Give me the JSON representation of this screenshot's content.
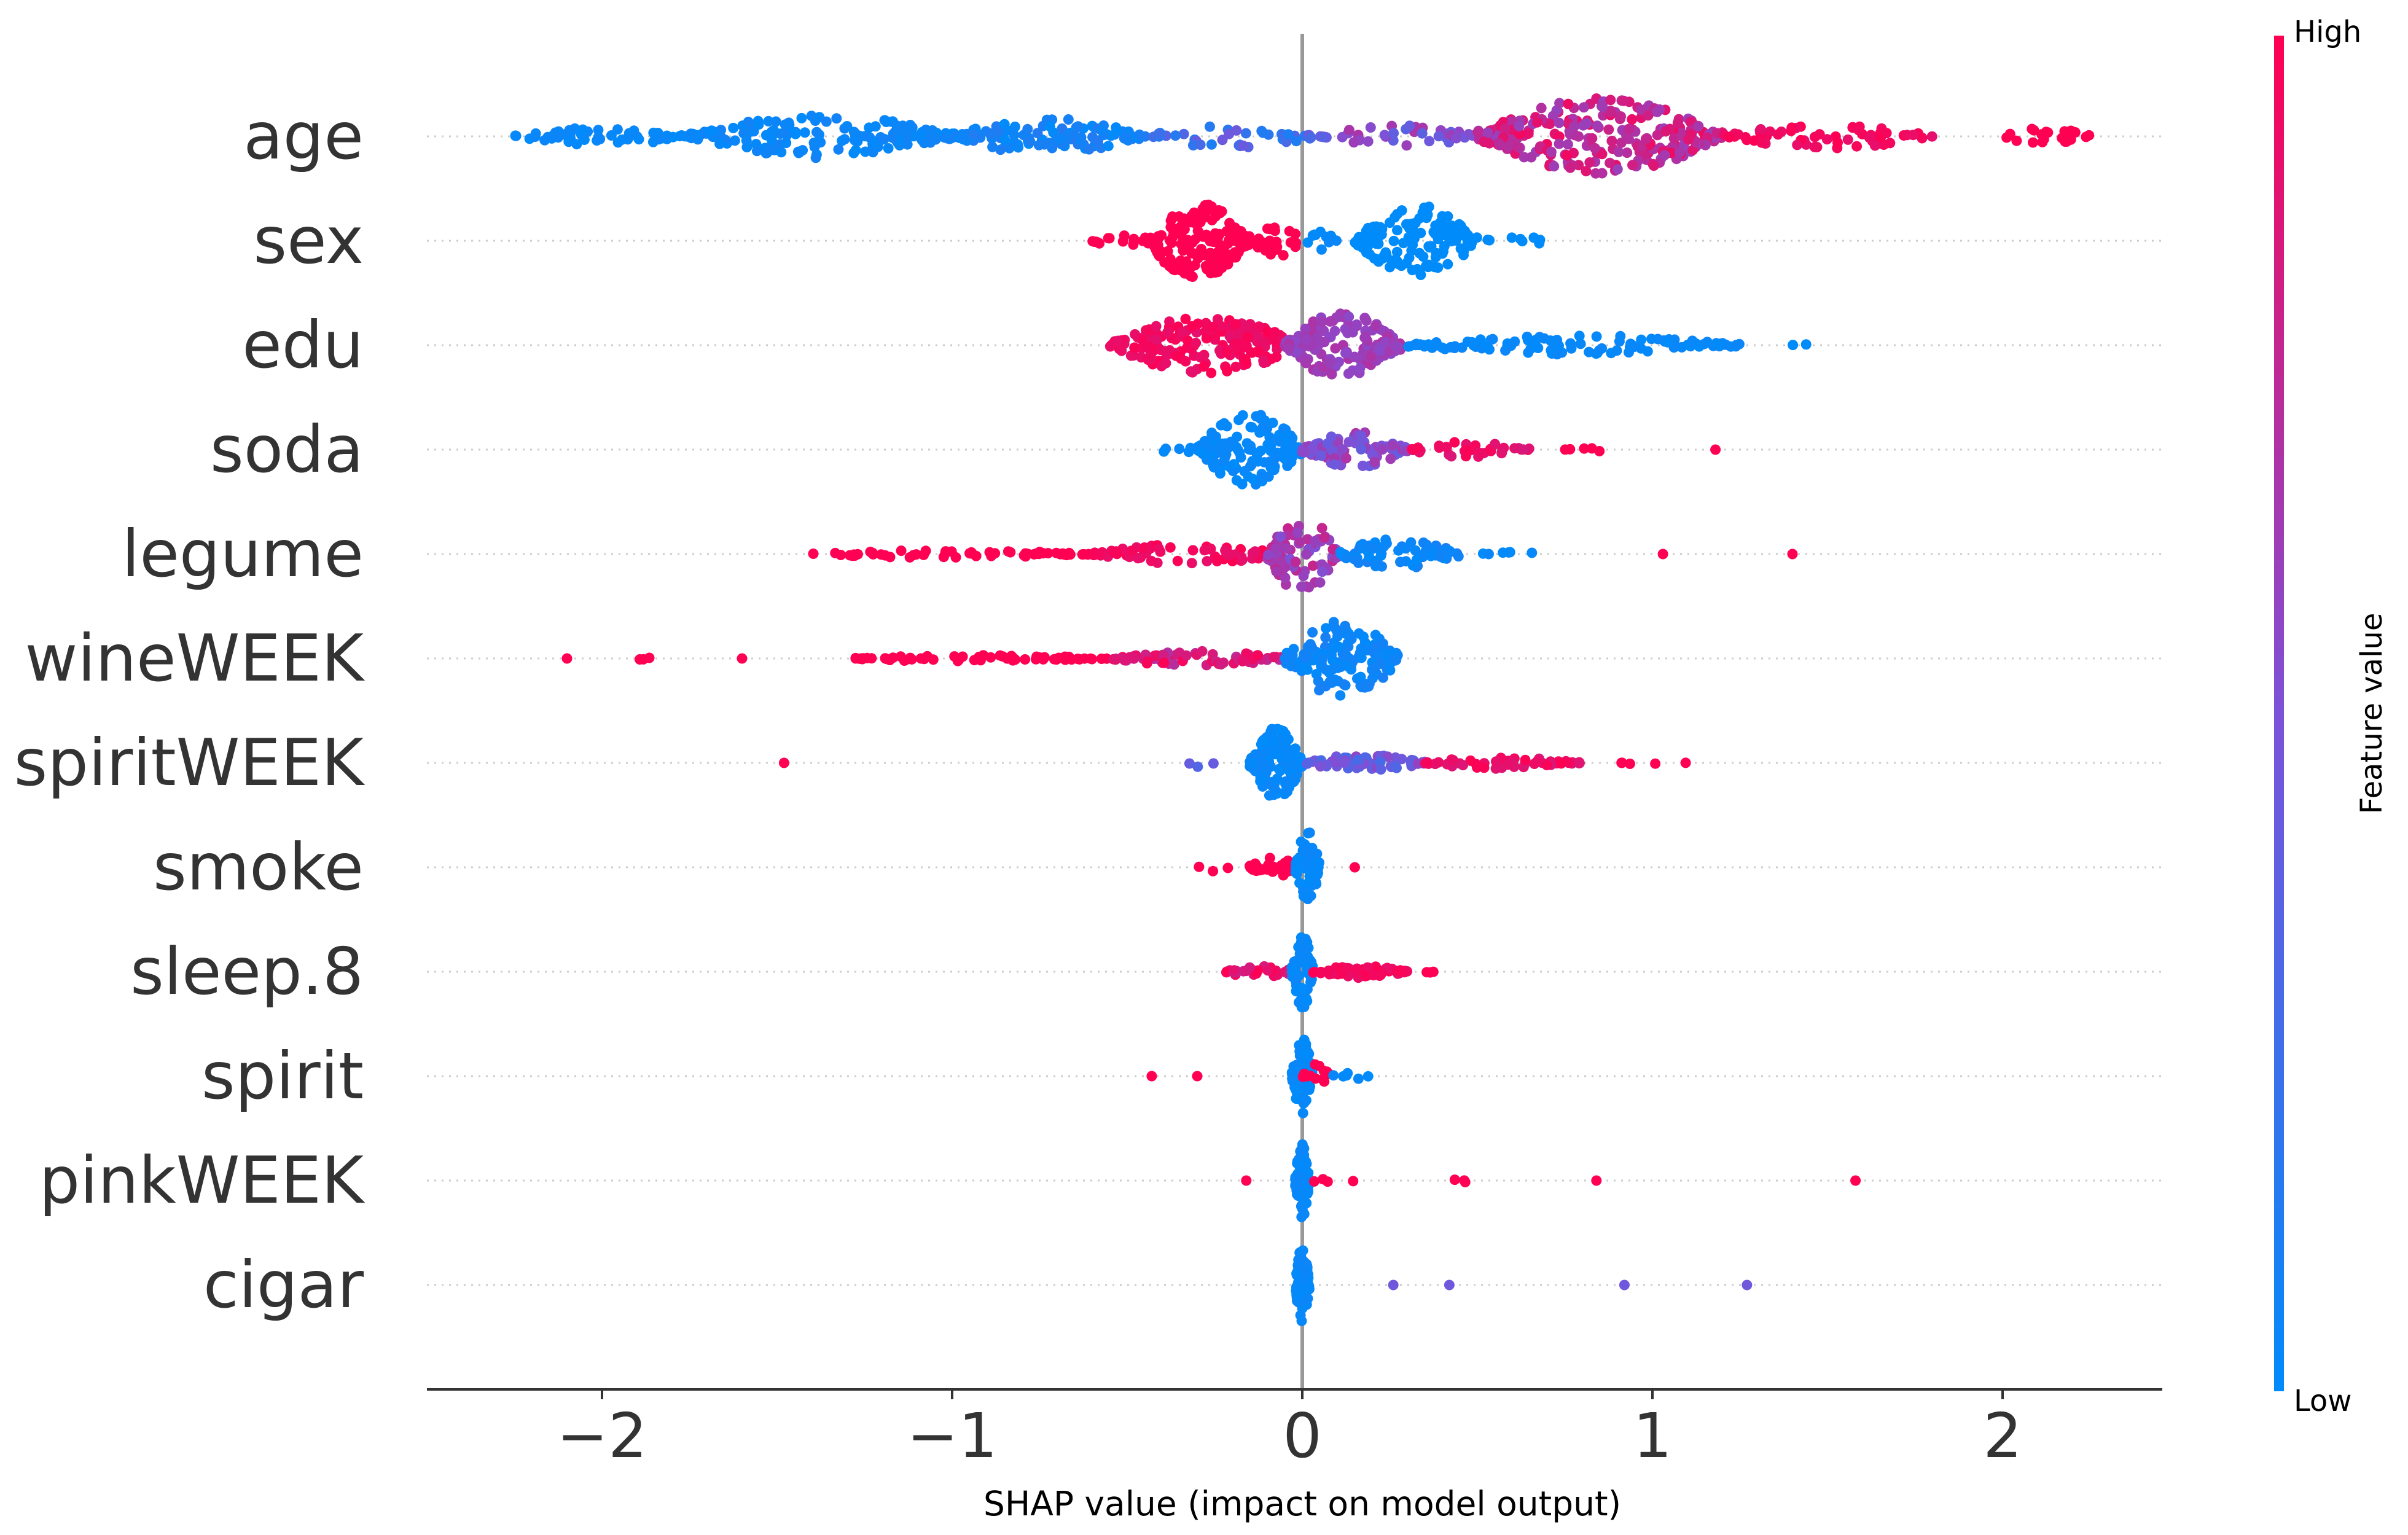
{
  "chart_data": {
    "type": "scatter",
    "subtype": "shap-beeswarm",
    "title": "",
    "xlabel": "SHAP value (impact on model output)",
    "ylabel": "",
    "xlim": [
      -2.5,
      2.5
    ],
    "xticks": [
      -2,
      -1,
      0,
      1,
      2
    ],
    "xtick_labels": [
      "−2",
      "−1",
      "0",
      "1",
      "2"
    ],
    "features": [
      "age",
      "sex",
      "edu",
      "soda",
      "legume",
      "wineWEEK",
      "spiritWEEK",
      "smoke",
      "sleep.8",
      "spirit",
      "pinkWEEK",
      "cigar"
    ],
    "colorbar": {
      "title": "Feature value",
      "high_label": "High",
      "low_label": "Low",
      "low_color": "#008bfb",
      "high_color": "#ff0052"
    },
    "zero_line_color": "#999999",
    "series": [
      {
        "name": "age",
        "clusters": [
          {
            "from": -2.25,
            "to": -1.75,
            "n": 60,
            "spread": 0.22,
            "fv": [
              0.0,
              0.05
            ]
          },
          {
            "from": -1.75,
            "to": -1.0,
            "n": 170,
            "spread": 0.55,
            "fv": [
              0.0,
              0.08
            ]
          },
          {
            "from": -1.0,
            "to": -0.45,
            "n": 110,
            "spread": 0.45,
            "fv": [
              0.0,
              0.15
            ]
          },
          {
            "from": -0.45,
            "to": 0.05,
            "n": 45,
            "spread": 0.3,
            "fv": [
              0.1,
              0.45
            ]
          },
          {
            "from": 0.05,
            "to": 0.5,
            "n": 40,
            "spread": 0.28,
            "fv": [
              0.35,
              0.7
            ]
          },
          {
            "from": 0.5,
            "to": 1.2,
            "n": 260,
            "spread": 0.95,
            "fv": [
              0.6,
              0.95
            ]
          },
          {
            "from": 1.2,
            "to": 1.8,
            "n": 60,
            "spread": 0.3,
            "fv": [
              0.9,
              1.0
            ]
          },
          {
            "from": 2.0,
            "to": 2.25,
            "n": 25,
            "spread": 0.22,
            "fv": [
              1.0,
              1.0
            ]
          }
        ]
      },
      {
        "name": "sex",
        "clusters": [
          {
            "from": -0.6,
            "to": -0.45,
            "n": 12,
            "spread": 0.15,
            "fv": [
              1.0,
              1.0
            ]
          },
          {
            "from": -0.45,
            "to": -0.15,
            "n": 170,
            "spread": 0.95,
            "fv": [
              1.0,
              1.0
            ]
          },
          {
            "from": -0.15,
            "to": 0.0,
            "n": 25,
            "spread": 0.4,
            "fv": [
              1.0,
              1.0
            ]
          },
          {
            "from": 0.0,
            "to": 0.1,
            "n": 12,
            "spread": 0.25,
            "fv": [
              0.0,
              0.05
            ]
          },
          {
            "from": 0.15,
            "to": 0.5,
            "n": 150,
            "spread": 0.9,
            "fv": [
              0.0,
              0.0
            ]
          },
          {
            "from": 0.5,
            "to": 0.72,
            "n": 8,
            "spread": 0.1,
            "fv": [
              0.0,
              0.0
            ]
          }
        ]
      },
      {
        "name": "edu",
        "clusters": [
          {
            "from": -0.55,
            "to": 0.0,
            "n": 200,
            "spread": 0.7,
            "fv": [
              0.9,
              1.0
            ]
          },
          {
            "from": -0.05,
            "to": 0.28,
            "n": 150,
            "spread": 0.85,
            "fv": [
              0.55,
              0.7
            ]
          },
          {
            "from": 0.3,
            "to": 1.25,
            "n": 110,
            "spread": 0.25,
            "fv": [
              0.0,
              0.05
            ]
          },
          {
            "from": 1.4,
            "to": 1.46,
            "n": 2,
            "spread": 0.05,
            "fv": [
              0.0,
              0.0
            ]
          }
        ]
      },
      {
        "name": "soda",
        "clusters": [
          {
            "from": -0.42,
            "to": -0.3,
            "n": 5,
            "spread": 0.1,
            "fv": [
              0.0,
              0.05
            ]
          },
          {
            "from": -0.3,
            "to": 0.0,
            "n": 150,
            "spread": 0.95,
            "fv": [
              0.0,
              0.05
            ]
          },
          {
            "from": 0.0,
            "to": 0.3,
            "n": 90,
            "spread": 0.45,
            "fv": [
              0.4,
              0.7
            ]
          },
          {
            "from": 0.3,
            "to": 0.65,
            "n": 35,
            "spread": 0.2,
            "fv": [
              0.85,
              1.0
            ]
          },
          {
            "from": 0.75,
            "to": 0.93,
            "n": 5,
            "spread": 0.05,
            "fv": [
              1.0,
              1.0
            ]
          },
          {
            "from": 1.17,
            "to": 1.19,
            "n": 1,
            "spread": 0.0,
            "fv": [
              1.0,
              1.0
            ]
          }
        ]
      },
      {
        "name": "legume",
        "clusters": [
          {
            "from": -1.4,
            "to": -0.6,
            "n": 60,
            "spread": 0.1,
            "fv": [
              1.0,
              1.0
            ]
          },
          {
            "from": -0.6,
            "to": -0.05,
            "n": 70,
            "spread": 0.25,
            "fv": [
              0.9,
              1.0
            ]
          },
          {
            "from": -0.1,
            "to": 0.1,
            "n": 90,
            "spread": 1.0,
            "fv": [
              0.5,
              0.8
            ]
          },
          {
            "from": 0.1,
            "to": 0.45,
            "n": 70,
            "spread": 0.4,
            "fv": [
              0.0,
              0.1
            ]
          },
          {
            "from": 0.5,
            "to": 0.72,
            "n": 6,
            "spread": 0.05,
            "fv": [
              0.0,
              0.05
            ]
          },
          {
            "from": 1.02,
            "to": 1.04,
            "n": 1,
            "spread": 0.0,
            "fv": [
              1.0,
              1.0
            ]
          },
          {
            "from": 1.39,
            "to": 1.41,
            "n": 1,
            "spread": 0.0,
            "fv": [
              1.0,
              1.0
            ]
          }
        ]
      },
      {
        "name": "wineWEEK",
        "clusters": [
          {
            "from": -2.11,
            "to": -2.09,
            "n": 1,
            "spread": 0.0,
            "fv": [
              1.0,
              1.0
            ]
          },
          {
            "from": -1.92,
            "to": -1.86,
            "n": 3,
            "spread": 0.1,
            "fv": [
              1.0,
              1.0
            ]
          },
          {
            "from": -1.61,
            "to": -1.59,
            "n": 1,
            "spread": 0.0,
            "fv": [
              1.0,
              1.0
            ]
          },
          {
            "from": -1.3,
            "to": -0.55,
            "n": 60,
            "spread": 0.08,
            "fv": [
              1.0,
              1.0
            ]
          },
          {
            "from": -0.55,
            "to": -0.05,
            "n": 70,
            "spread": 0.2,
            "fv": [
              0.7,
              1.0
            ]
          },
          {
            "from": -0.05,
            "to": 0.28,
            "n": 160,
            "spread": 0.95,
            "fv": [
              0.0,
              0.1
            ]
          }
        ]
      },
      {
        "name": "spiritWEEK",
        "clusters": [
          {
            "from": -1.49,
            "to": -1.47,
            "n": 1,
            "spread": 0.0,
            "fv": [
              1.0,
              1.0
            ]
          },
          {
            "from": -0.4,
            "to": -0.22,
            "n": 3,
            "spread": 0.1,
            "fv": [
              0.1,
              0.5
            ]
          },
          {
            "from": -0.15,
            "to": 0.0,
            "n": 120,
            "spread": 0.9,
            "fv": [
              0.0,
              0.05
            ]
          },
          {
            "from": 0.0,
            "to": 0.35,
            "n": 60,
            "spread": 0.2,
            "fv": [
              0.25,
              0.6
            ]
          },
          {
            "from": 0.35,
            "to": 0.8,
            "n": 50,
            "spread": 0.15,
            "fv": [
              0.85,
              1.0
            ]
          },
          {
            "from": 0.9,
            "to": 1.1,
            "n": 5,
            "spread": 0.05,
            "fv": [
              1.0,
              1.0
            ]
          }
        ]
      },
      {
        "name": "smoke",
        "clusters": [
          {
            "from": -0.3,
            "to": -0.2,
            "n": 3,
            "spread": 0.1,
            "fv": [
              1.0,
              1.0
            ]
          },
          {
            "from": -0.15,
            "to": -0.01,
            "n": 40,
            "spread": 0.25,
            "fv": [
              1.0,
              1.0
            ]
          },
          {
            "from": -0.02,
            "to": 0.05,
            "n": 60,
            "spread": 0.9,
            "fv": [
              0.0,
              0.05
            ]
          },
          {
            "from": 0.14,
            "to": 0.16,
            "n": 1,
            "spread": 0.0,
            "fv": [
              1.0,
              1.0
            ]
          }
        ]
      },
      {
        "name": "sleep.8",
        "clusters": [
          {
            "from": -0.22,
            "to": -0.02,
            "n": 30,
            "spread": 0.15,
            "fv": [
              0.8,
              1.0
            ]
          },
          {
            "from": -0.03,
            "to": 0.03,
            "n": 70,
            "spread": 0.95,
            "fv": [
              0.0,
              0.05
            ]
          },
          {
            "from": 0.03,
            "to": 0.3,
            "n": 50,
            "spread": 0.15,
            "fv": [
              0.9,
              1.0
            ]
          },
          {
            "from": 0.35,
            "to": 0.4,
            "n": 3,
            "spread": 0.05,
            "fv": [
              1.0,
              1.0
            ]
          }
        ]
      },
      {
        "name": "spirit",
        "clusters": [
          {
            "from": -0.44,
            "to": -0.42,
            "n": 1,
            "spread": 0.0,
            "fv": [
              1.0,
              1.0
            ]
          },
          {
            "from": -0.31,
            "to": -0.29,
            "n": 1,
            "spread": 0.0,
            "fv": [
              1.0,
              1.0
            ]
          },
          {
            "from": -0.03,
            "to": 0.03,
            "n": 70,
            "spread": 0.95,
            "fv": [
              0.0,
              0.05
            ]
          },
          {
            "from": 0.0,
            "to": 0.08,
            "n": 12,
            "spread": 0.3,
            "fv": [
              1.0,
              1.0
            ]
          },
          {
            "from": 0.08,
            "to": 0.19,
            "n": 6,
            "spread": 0.1,
            "fv": [
              0.0,
              0.05
            ]
          }
        ]
      },
      {
        "name": "pinkWEEK",
        "clusters": [
          {
            "from": -0.02,
            "to": 0.02,
            "n": 90,
            "spread": 0.95,
            "fv": [
              0.0,
              0.05
            ]
          },
          {
            "from": -0.17,
            "to": -0.15,
            "n": 1,
            "spread": 0.0,
            "fv": [
              1.0,
              1.0
            ]
          },
          {
            "from": 0.0,
            "to": 0.16,
            "n": 4,
            "spread": 0.05,
            "fv": [
              1.0,
              1.0
            ]
          },
          {
            "from": 0.41,
            "to": 0.5,
            "n": 3,
            "spread": 0.05,
            "fv": [
              1.0,
              1.0
            ]
          },
          {
            "from": 0.83,
            "to": 0.85,
            "n": 1,
            "spread": 0.0,
            "fv": [
              1.0,
              1.0
            ]
          },
          {
            "from": 1.57,
            "to": 1.59,
            "n": 1,
            "spread": 0.0,
            "fv": [
              1.0,
              1.0
            ]
          }
        ]
      },
      {
        "name": "cigar",
        "clusters": [
          {
            "from": -0.02,
            "to": 0.02,
            "n": 90,
            "spread": 0.95,
            "fv": [
              0.0,
              0.05
            ]
          },
          {
            "from": 0.25,
            "to": 0.27,
            "n": 1,
            "spread": 0.0,
            "fv": [
              0.45,
              0.45
            ]
          },
          {
            "from": 0.41,
            "to": 0.43,
            "n": 1,
            "spread": 0.0,
            "fv": [
              0.45,
              0.45
            ]
          },
          {
            "from": 0.91,
            "to": 0.93,
            "n": 1,
            "spread": 0.0,
            "fv": [
              0.45,
              0.45
            ]
          },
          {
            "from": 1.26,
            "to": 1.28,
            "n": 1,
            "spread": 0.0,
            "fv": [
              0.45,
              0.45
            ]
          }
        ]
      }
    ]
  }
}
